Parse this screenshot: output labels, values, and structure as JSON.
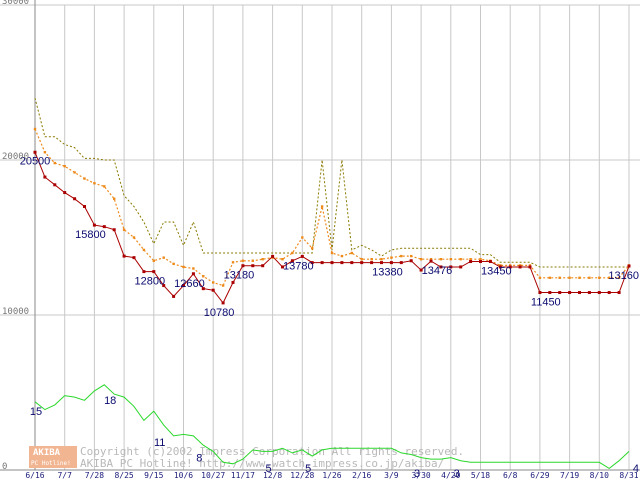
{
  "chart_data": {
    "type": "line",
    "y_axis": {
      "range": [
        0,
        30000
      ],
      "ticks": [
        {
          "value": 0,
          "label": "0"
        },
        {
          "value": 10000,
          "label": "10000"
        },
        {
          "value": 20000,
          "label": "20000"
        },
        {
          "value": 30000,
          "label": "30000"
        }
      ]
    },
    "x_axis": {
      "ticks": [
        {
          "i": 0,
          "label": "6/16"
        },
        {
          "i": 3,
          "label": "7/7"
        },
        {
          "i": 6,
          "label": "7/28"
        },
        {
          "i": 9,
          "label": "8/25"
        },
        {
          "i": 12,
          "label": "9/15"
        },
        {
          "i": 15,
          "label": "10/6"
        },
        {
          "i": 18,
          "label": "10/27"
        },
        {
          "i": 21,
          "label": "11/17"
        },
        {
          "i": 24,
          "label": "12/8"
        },
        {
          "i": 27,
          "label": "12/28"
        },
        {
          "i": 30,
          "label": "1/26"
        },
        {
          "i": 33,
          "label": "2/16"
        },
        {
          "i": 36,
          "label": "3/9"
        },
        {
          "i": 39,
          "label": "3/30"
        },
        {
          "i": 42,
          "label": "4/20"
        },
        {
          "i": 45,
          "label": "5/18"
        },
        {
          "i": 48,
          "label": "6/8"
        },
        {
          "i": 51,
          "label": "6/29"
        },
        {
          "i": 54,
          "label": "7/19"
        },
        {
          "i": 57,
          "label": "8/10"
        },
        {
          "i": 60,
          "label": "8/31"
        }
      ]
    },
    "grid": true,
    "series": [
      {
        "role": "min_price",
        "color": "#aa0000",
        "values": [
          20500,
          18900,
          18400,
          17900,
          17500,
          17000,
          15800,
          15700,
          15500,
          13800,
          13700,
          12800,
          12800,
          11900,
          11200,
          11900,
          12660,
          11700,
          11600,
          10780,
          12100,
          13180,
          13180,
          13180,
          13780,
          13100,
          13500,
          13780,
          13380,
          13380,
          13380,
          13380,
          13380,
          13380,
          13380,
          13380,
          13380,
          13380,
          13500,
          12900,
          13476,
          13100,
          13100,
          13100,
          13450,
          13450,
          13450,
          13100,
          13100,
          13100,
          13100,
          11450,
          11450,
          11450,
          11450,
          11450,
          11450,
          11450,
          11450,
          11450,
          13160
        ]
      },
      {
        "role": "avg_price",
        "color": "#ee8a1a",
        "values": [
          22000,
          20500,
          19800,
          19600,
          19200,
          18800,
          18500,
          18300,
          17500,
          15500,
          15000,
          14200,
          13500,
          13700,
          13300,
          13100,
          13000,
          12500,
          12100,
          11900,
          13400,
          13500,
          13500,
          13600,
          13700,
          13600,
          14000,
          15000,
          14300,
          17000,
          14000,
          13800,
          14000,
          13600,
          13600,
          13600,
          13700,
          13800,
          13800,
          13600,
          13600,
          13600,
          13600,
          13600,
          13600,
          13600,
          13500,
          13200,
          13200,
          13200,
          13200,
          12400,
          12400,
          12400,
          12400,
          12400,
          12400,
          12400,
          12400,
          12400,
          13200
        ]
      },
      {
        "role": "max_price",
        "color": "#8a7a00",
        "values": [
          24000,
          21500,
          21500,
          21000,
          20800,
          20100,
          20100,
          20000,
          20000,
          17700,
          17000,
          16000,
          14600,
          16000,
          16000,
          14500,
          16000,
          14000,
          14000,
          14000,
          14000,
          14000,
          14000,
          14000,
          14000,
          14000,
          14000,
          14000,
          14000,
          20000,
          14200,
          20000,
          14200,
          14500,
          14200,
          13800,
          14200,
          14300,
          14300,
          14300,
          14300,
          14300,
          14300,
          14300,
          14300,
          13900,
          13900,
          13400,
          13400,
          13400,
          13400,
          13100,
          13100,
          13100,
          13100,
          13100,
          13100,
          13100,
          13100,
          13100,
          13100
        ]
      },
      {
        "role": "count",
        "color": "#2ad82a",
        "values": [
          4400,
          3900,
          4200,
          4800,
          4700,
          4500,
          5100,
          5500,
          4900,
          4700,
          4100,
          3200,
          3800,
          2900,
          2200,
          2300,
          2200,
          1600,
          1200,
          500,
          400,
          700,
          1300,
          1200,
          1200,
          1400,
          1100,
          1300,
          900,
          1300,
          1400,
          1400,
          1400,
          1400,
          1400,
          1400,
          1400,
          1100,
          1000,
          800,
          700,
          700,
          800,
          600,
          500,
          500,
          500,
          500,
          500,
          500,
          500,
          500,
          500,
          500,
          500,
          500,
          500,
          500,
          100,
          600,
          1200
        ]
      }
    ],
    "annotations": [
      {
        "text": "20500",
        "i": 0,
        "y": 20500
      },
      {
        "text": "15800",
        "i": 6,
        "y": 15800
      },
      {
        "text": "12800",
        "i": 12,
        "y": 12800
      },
      {
        "text": "12660",
        "i": 16,
        "y": 12660
      },
      {
        "text": "10780",
        "i": 19,
        "y": 10780
      },
      {
        "text": "13180",
        "i": 21,
        "y": 13180
      },
      {
        "text": "13780",
        "i": 27,
        "y": 13780
      },
      {
        "text": "13380",
        "i": 36,
        "y": 13380
      },
      {
        "text": "13476",
        "i": 41,
        "y": 13476
      },
      {
        "text": "13450",
        "i": 47,
        "y": 13450
      },
      {
        "text": "11450",
        "i": 52,
        "y": 11450
      },
      {
        "text": "13160",
        "i": 60,
        "y": 13160
      },
      {
        "text": "15",
        "i": 0,
        "y": 4400
      },
      {
        "text": "18",
        "i": 8,
        "y": 5100
      },
      {
        "text": "11",
        "i": 13,
        "y": 2400
      },
      {
        "text": "8",
        "i": 17,
        "y": 1400
      },
      {
        "text": "5",
        "i": 24,
        "y": 700
      },
      {
        "text": "5",
        "i": 28,
        "y": 700
      },
      {
        "text": "3",
        "i": 39,
        "y": 400
      },
      {
        "text": "3",
        "i": 43,
        "y": 400
      },
      {
        "text": "4",
        "i": 59,
        "y": 700
      }
    ]
  },
  "watermark": {
    "line1": "Copyright (c)2002 Impress Corporation All rights reserved.",
    "line2": "AKIBA PC Hotline!  http://www.watch.impress.co.jp/akiba/"
  },
  "logo": {
    "text": "AKIBA",
    "sub": "PC Hotline!",
    "color": "#f2b592"
  }
}
